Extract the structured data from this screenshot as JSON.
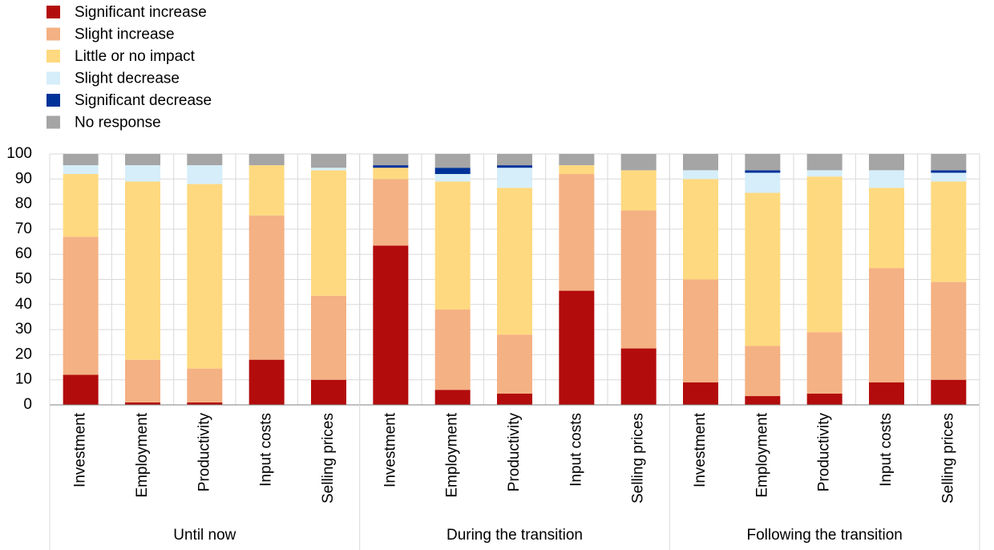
{
  "chart_data": {
    "type": "stacked_bar",
    "categories": [
      "Investment",
      "Employment",
      "Productivity",
      "Input costs",
      "Selling prices",
      "Investment",
      "Employment",
      "Productivity",
      "Input costs",
      "Selling prices",
      "Investment",
      "Employment",
      "Productivity",
      "Input costs",
      "Selling prices"
    ],
    "groups": [
      "Until now",
      "During the transition",
      "Following the transition"
    ],
    "series": [
      {
        "name": "Significant increase",
        "color": "#b30c0c",
        "values": [
          12,
          1,
          1,
          18,
          10,
          63.5,
          6,
          4.5,
          45.5,
          22.5,
          9,
          3.5,
          4.5,
          9,
          10
        ]
      },
      {
        "name": "Slight increase",
        "color": "#f4b183",
        "values": [
          55,
          17,
          13.5,
          57.5,
          33.5,
          26.5,
          32,
          23.5,
          46.5,
          55,
          41,
          20,
          24.5,
          45.5,
          39
        ]
      },
      {
        "name": "Little or no impact",
        "color": "#ffd97f",
        "values": [
          25,
          71,
          73.5,
          20,
          50,
          4.5,
          51,
          58.5,
          3.5,
          16,
          40,
          61,
          62,
          32,
          40
        ]
      },
      {
        "name": "Slight decrease",
        "color": "#d6eef9",
        "values": [
          3.5,
          6.5,
          7.5,
          0,
          1,
          0,
          3,
          8,
          0,
          0,
          3.5,
          8,
          2.5,
          7,
          3.5
        ]
      },
      {
        "name": "Significant decrease",
        "color": "#003299",
        "values": [
          0,
          0,
          0,
          0,
          0,
          1,
          2.5,
          1,
          0,
          0,
          0,
          1,
          0,
          0,
          1
        ]
      },
      {
        "name": "No response",
        "color": "#a5a5a5",
        "values": [
          4.5,
          4.5,
          4.5,
          4.5,
          5.5,
          4.5,
          5.5,
          4.5,
          4.5,
          6.5,
          6.5,
          6.5,
          6.5,
          6.5,
          6.5
        ]
      }
    ],
    "ylim": [
      0,
      100
    ],
    "yticks": [
      0,
      10,
      20,
      30,
      40,
      50,
      60,
      70,
      80,
      90,
      100
    ],
    "grid": true,
    "legend": "top-left"
  }
}
